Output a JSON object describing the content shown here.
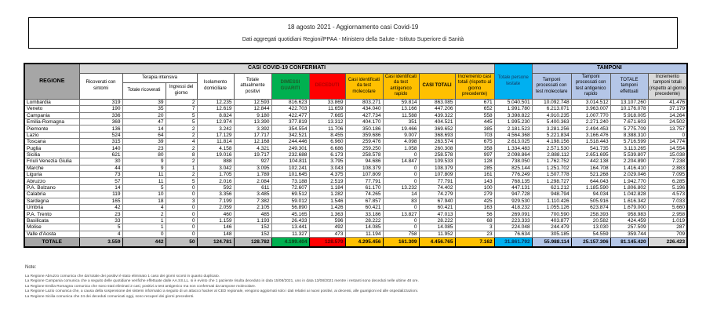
{
  "header": {
    "line1": "18 agosto 2021 - Aggiornamento casi Covid-19",
    "line2": "Dati aggregati quotidiani Regioni/PPAA - Ministero della Salute - Istituto Superiore di Sanità"
  },
  "table": {
    "group_headers": {
      "casi": "CASI COVID-19 CONFERMATI",
      "tamponi": "TAMPONI",
      "terapia_intensiva": "Terapia intensiva"
    },
    "columns": {
      "regione": "REGIONE",
      "ricoverati": "Ricoverati con sintomi",
      "terapia_totale": "Totale ricoverati",
      "terapia_ingressi": "Ingressi del giorno",
      "isolamento": "Isolamento domiciliare",
      "positivi": "Totale attualmente positivi",
      "dimessi": "DIMESSI GUARITI",
      "deceduti": "DECEDUTI",
      "casi_molecolare": "Casi identificati da test molecolare",
      "casi_antigenico": "Casi identificati da test antigenico rapido",
      "casi_totali": "CASI TOTALI",
      "incremento_casi": "Incremento casi totali (rispetto al giorno precedente)",
      "persone_testate": "Totale persone testate",
      "tamponi_molecolare": "Tamponi processati con test molecolare",
      "tamponi_antigenico": "Tamponi processati con test antigenico rapido",
      "tamponi_totale": "TOTALE tamponi effettuati",
      "incremento_tamponi": "Incremento tamponi totali (rispetto al giorno precedente)"
    },
    "rows": [
      {
        "regione": "Lombardia",
        "values": [
          "319",
          "39",
          "2",
          "12.235",
          "12.593",
          "816.623",
          "33.869",
          "803.271",
          "59.814",
          "863.085",
          "671",
          "5.040.501",
          "10.092.748",
          "3.014.512",
          "13.107.260",
          "41.476"
        ]
      },
      {
        "regione": "Veneto",
        "values": [
          "190",
          "35",
          "7",
          "12.619",
          "12.844",
          "422.703",
          "11.659",
          "434.040",
          "13.166",
          "447.206",
          "652",
          "1.991.780",
          "6.213.071",
          "3.963.007",
          "10.176.078",
          "37.179"
        ]
      },
      {
        "regione": "Campania",
        "values": [
          "336",
          "20",
          "5",
          "8.824",
          "9.180",
          "422.477",
          "7.665",
          "427.734",
          "11.588",
          "439.322",
          "558",
          "3.398.822",
          "4.910.235",
          "1.007.770",
          "5.918.005",
          "14.264"
        ]
      },
      {
        "regione": "Emilia-Romagna",
        "values": [
          "369",
          "47",
          "5",
          "12.974",
          "13.390",
          "377.819",
          "13.312",
          "404.170",
          "351",
          "404.521",
          "445",
          "1.995.230",
          "5.400.363",
          "2.271.240",
          "7.671.603",
          "24.502"
        ]
      },
      {
        "regione": "Piemonte",
        "values": [
          "136",
          "14",
          "2",
          "3.242",
          "3.392",
          "354.554",
          "11.706",
          "350.186",
          "19.466",
          "369.652",
          "385",
          "2.181.523",
          "3.281.256",
          "2.494.453",
          "5.775.709",
          "13.757"
        ]
      },
      {
        "regione": "Lazio",
        "values": [
          "524",
          "64",
          "2",
          "17.129",
          "17.717",
          "342.521",
          "8.455",
          "359.686",
          "9.007",
          "368.693",
          "703",
          "4.564.368",
          "5.221.834",
          "3.166.476",
          "8.388.310",
          "0"
        ]
      },
      {
        "regione": "Toscana",
        "values": [
          "315",
          "39",
          "4",
          "11.814",
          "12.168",
          "244.446",
          "6.960",
          "259.476",
          "4.098",
          "263.574",
          "675",
          "2.613.025",
          "4.198.156",
          "1.518.443",
          "5.716.599",
          "14.774"
        ]
      },
      {
        "regione": "Puglia",
        "values": [
          "140",
          "23",
          "2",
          "4.158",
          "4.321",
          "249.301",
          "6.686",
          "259.250",
          "1.058",
          "260.308",
          "358",
          "1.334.483",
          "2.571.530",
          "541.735",
          "3.113.265",
          "14.554"
        ]
      },
      {
        "regione": "Sicilia",
        "values": [
          "621",
          "80",
          "8",
          "19.016",
          "19.717",
          "232.688",
          "6.173",
          "258.578",
          "0",
          "258.578",
          "997",
          "2.098.864",
          "2.888.112",
          "2.651.695",
          "5.539.807",
          "15.038"
        ]
      },
      {
        "regione": "Friuli Venezia Giulia",
        "values": [
          "30",
          "9",
          "2",
          "888",
          "927",
          "104.811",
          "3.795",
          "94.686",
          "14.847",
          "109.533",
          "128",
          "738.050",
          "1.762.752",
          "442.138",
          "2.204.890",
          "7.238"
        ]
      },
      {
        "regione": "Marche",
        "values": [
          "44",
          "9",
          "1",
          "3.042",
          "3.095",
          "102.241",
          "3.043",
          "108.379",
          "0",
          "108.379",
          "285",
          "825.144",
          "1.251.702",
          "164.708",
          "1.416.410",
          "2.883"
        ]
      },
      {
        "regione": "Liguria",
        "values": [
          "73",
          "11",
          "2",
          "1.705",
          "1.789",
          "101.645",
          "4.375",
          "107.809",
          "0",
          "107.809",
          "161",
          "776.249",
          "1.507.778",
          "521.268",
          "2.029.046",
          "7.095"
        ]
      },
      {
        "regione": "Abruzzo",
        "values": [
          "57",
          "11",
          "5",
          "2.016",
          "2.084",
          "73.188",
          "2.519",
          "77.791",
          "0",
          "77.791",
          "143",
          "768.135",
          "1.298.727",
          "644.043",
          "1.942.770",
          "6.285"
        ]
      },
      {
        "regione": "P.A. Bolzano",
        "values": [
          "14",
          "5",
          "0",
          "592",
          "611",
          "72.607",
          "1.184",
          "61.170",
          "13.232",
          "74.402",
          "100",
          "447.131",
          "621.212",
          "1.185.590",
          "1.806.802",
          "5.196"
        ]
      },
      {
        "regione": "Calabria",
        "values": [
          "119",
          "10",
          "0",
          "3.356",
          "3.485",
          "69.512",
          "1.282",
          "74.265",
          "14",
          "74.279",
          "279",
          "947.728",
          "948.794",
          "94.034",
          "1.042.828",
          "4.573"
        ]
      },
      {
        "regione": "Sardegna",
        "values": [
          "165",
          "18",
          "3",
          "7.199",
          "7.382",
          "59.012",
          "1.546",
          "67.857",
          "83",
          "67.940",
          "425",
          "929.530",
          "1.110.426",
          "505.916",
          "1.616.342",
          "7.033"
        ]
      },
      {
        "regione": "Umbria",
        "values": [
          "42",
          "4",
          "0",
          "2.059",
          "2.105",
          "56.890",
          "1.426",
          "60.421",
          "0",
          "60.421",
          "163",
          "418.232",
          "1.055.126",
          "623.874",
          "1.679.000",
          "5.660"
        ]
      },
      {
        "regione": "P.A. Trento",
        "values": [
          "23",
          "2",
          "0",
          "460",
          "485",
          "45.165",
          "1.363",
          "33.186",
          "13.827",
          "47.013",
          "56",
          "269.091",
          "700.590",
          "258.393",
          "958.983",
          "2.958"
        ]
      },
      {
        "regione": "Basilicata",
        "values": [
          "33",
          "1",
          "0",
          "1.159",
          "1.193",
          "26.433",
          "596",
          "28.222",
          "0",
          "28.222",
          "68",
          "223.333",
          "403.877",
          "20.582",
          "424.459",
          "1.019"
        ]
      },
      {
        "regione": "Molise",
        "values": [
          "5",
          "1",
          "0",
          "146",
          "152",
          "13.441",
          "492",
          "14.085",
          "0",
          "14.085",
          "3",
          "224.048",
          "244.479",
          "13.030",
          "257.509",
          "287"
        ]
      },
      {
        "regione": "Valle d'Aosta",
        "values": [
          "4",
          "0",
          "0",
          "148",
          "152",
          "11.327",
          "473",
          "11.194",
          "758",
          "11.952",
          "23",
          "76.634",
          "305.185",
          "54.559",
          "359.744",
          "709"
        ]
      }
    ],
    "totals": {
      "label": "TOTALE",
      "values": [
        "3.559",
        "442",
        "50",
        "124.781",
        "128.782",
        "4.199.404",
        "128.579",
        "4.295.456",
        "161.309",
        "4.456.765",
        "7.162",
        "31.861.792",
        "55.988.114",
        "25.157.306",
        "81.145.420",
        "226.423"
      ]
    }
  },
  "notes": {
    "title": "Note:",
    "items": [
      "La Regione Abruzzo comunica che dal totale dei positivi è stato eliminato 1 caso dei giorni scorsi in quanto duplicato.",
      "La Regione Campania comunica che a seguito delle quotidiane verifiche effettuate dalle AA.SS.LL. si è evinto che 1 paziente risulta deceduto in data 15/08/2021, uno in data 13/08/2021 mentre i restanti sono deceduti nelle ultime 48 ore.",
      "La Regione Emilia Romagna comunica che sono stati eliminati 2 casi, positivi a test antigenico ma non confermati da tampone molecolare.",
      "La Regione Lazio comunica che, a causa della sospensione dei sistemi informatici a seguito di un attacco hacker al CED regionale, vengono aggiornati solo i dati relativi ai nuovi positivi, ai decessi, alle guarigioni ed alle ospedalizzazioni.",
      "La Regione Sicilia comunica che 24 dei deceduti comunicati oggi, sono recuperi dei giorni precedenti."
    ]
  },
  "colors": {
    "green": "#00b050",
    "red": "#ff0000",
    "yellow": "#ffc000",
    "cyan": "#00b0f0",
    "periwinkle": "#b4c6e7",
    "gray_header": "#a6a6a6",
    "band_gray": "#d9d9d9"
  }
}
